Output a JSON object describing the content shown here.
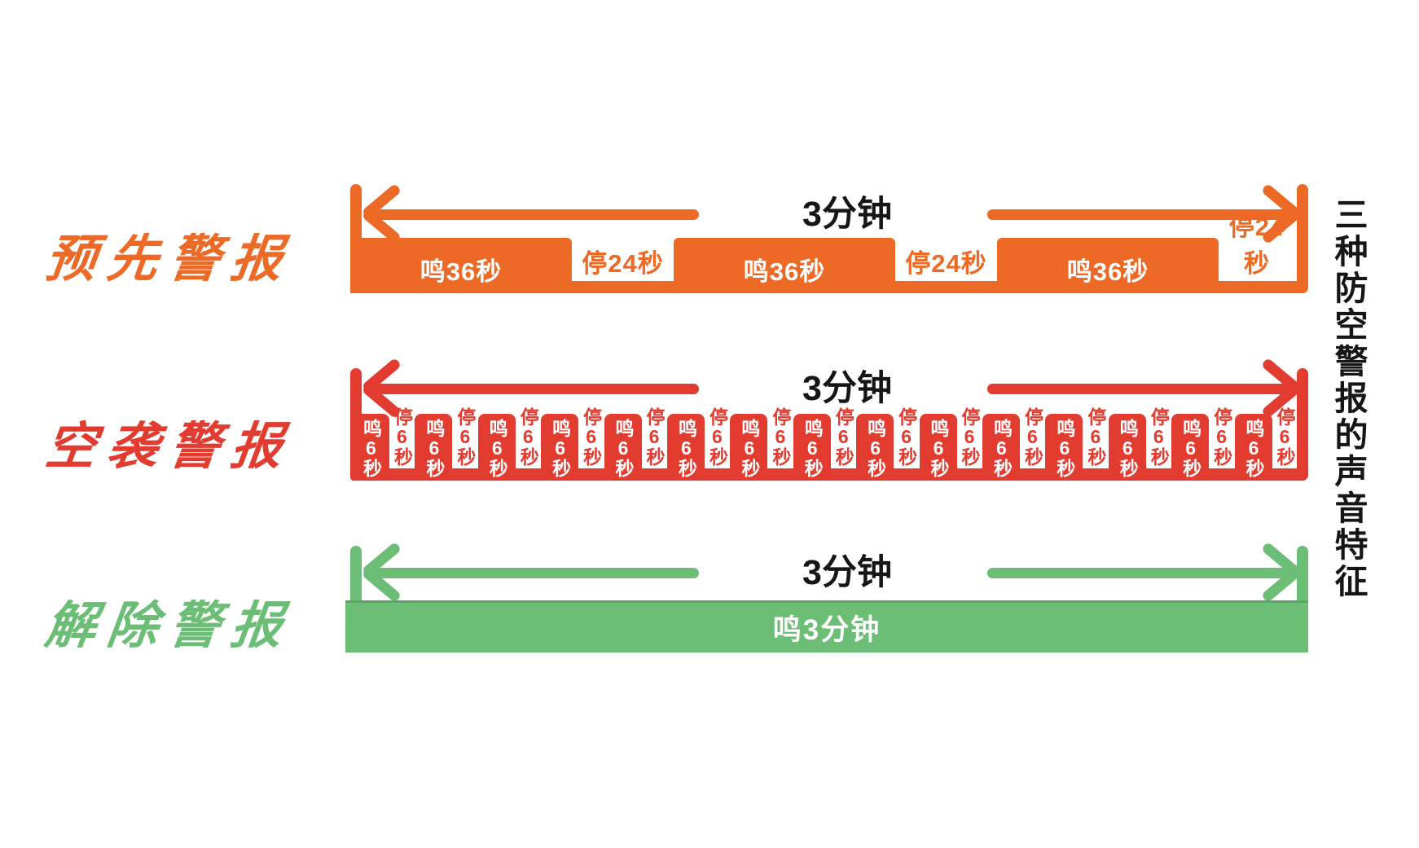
{
  "title_vertical": "三种防空警报的声音特征",
  "colors": {
    "pre_alarm_orange": "#EC6A26",
    "air_alarm_red": "#E23B30",
    "all_clear_green": "#6CBD76",
    "text_black": "#161616",
    "background": "#FFFFFF"
  },
  "rows": [
    {
      "name": "预先警报",
      "duration": "3分钟",
      "sound_label": "鸣36秒",
      "pause_label": "停24秒",
      "sound_seconds": 36,
      "pause_seconds": 24,
      "cycles": 3,
      "pattern": "square-wave",
      "color": "#EC6A26"
    },
    {
      "name": "空袭警报",
      "duration": "3分钟",
      "sound_label": "鸣6秒",
      "pause_label": "停6秒",
      "sound_seconds": 6,
      "pause_seconds": 6,
      "cycles": 15,
      "pattern": "square-wave",
      "color": "#E23B30"
    },
    {
      "name": "解除警报",
      "duration": "3分钟",
      "sound_label": "鸣3分钟",
      "sound_seconds": 180,
      "pause_seconds": 0,
      "cycles": 1,
      "pattern": "continuous",
      "color": "#6CBD76"
    }
  ]
}
